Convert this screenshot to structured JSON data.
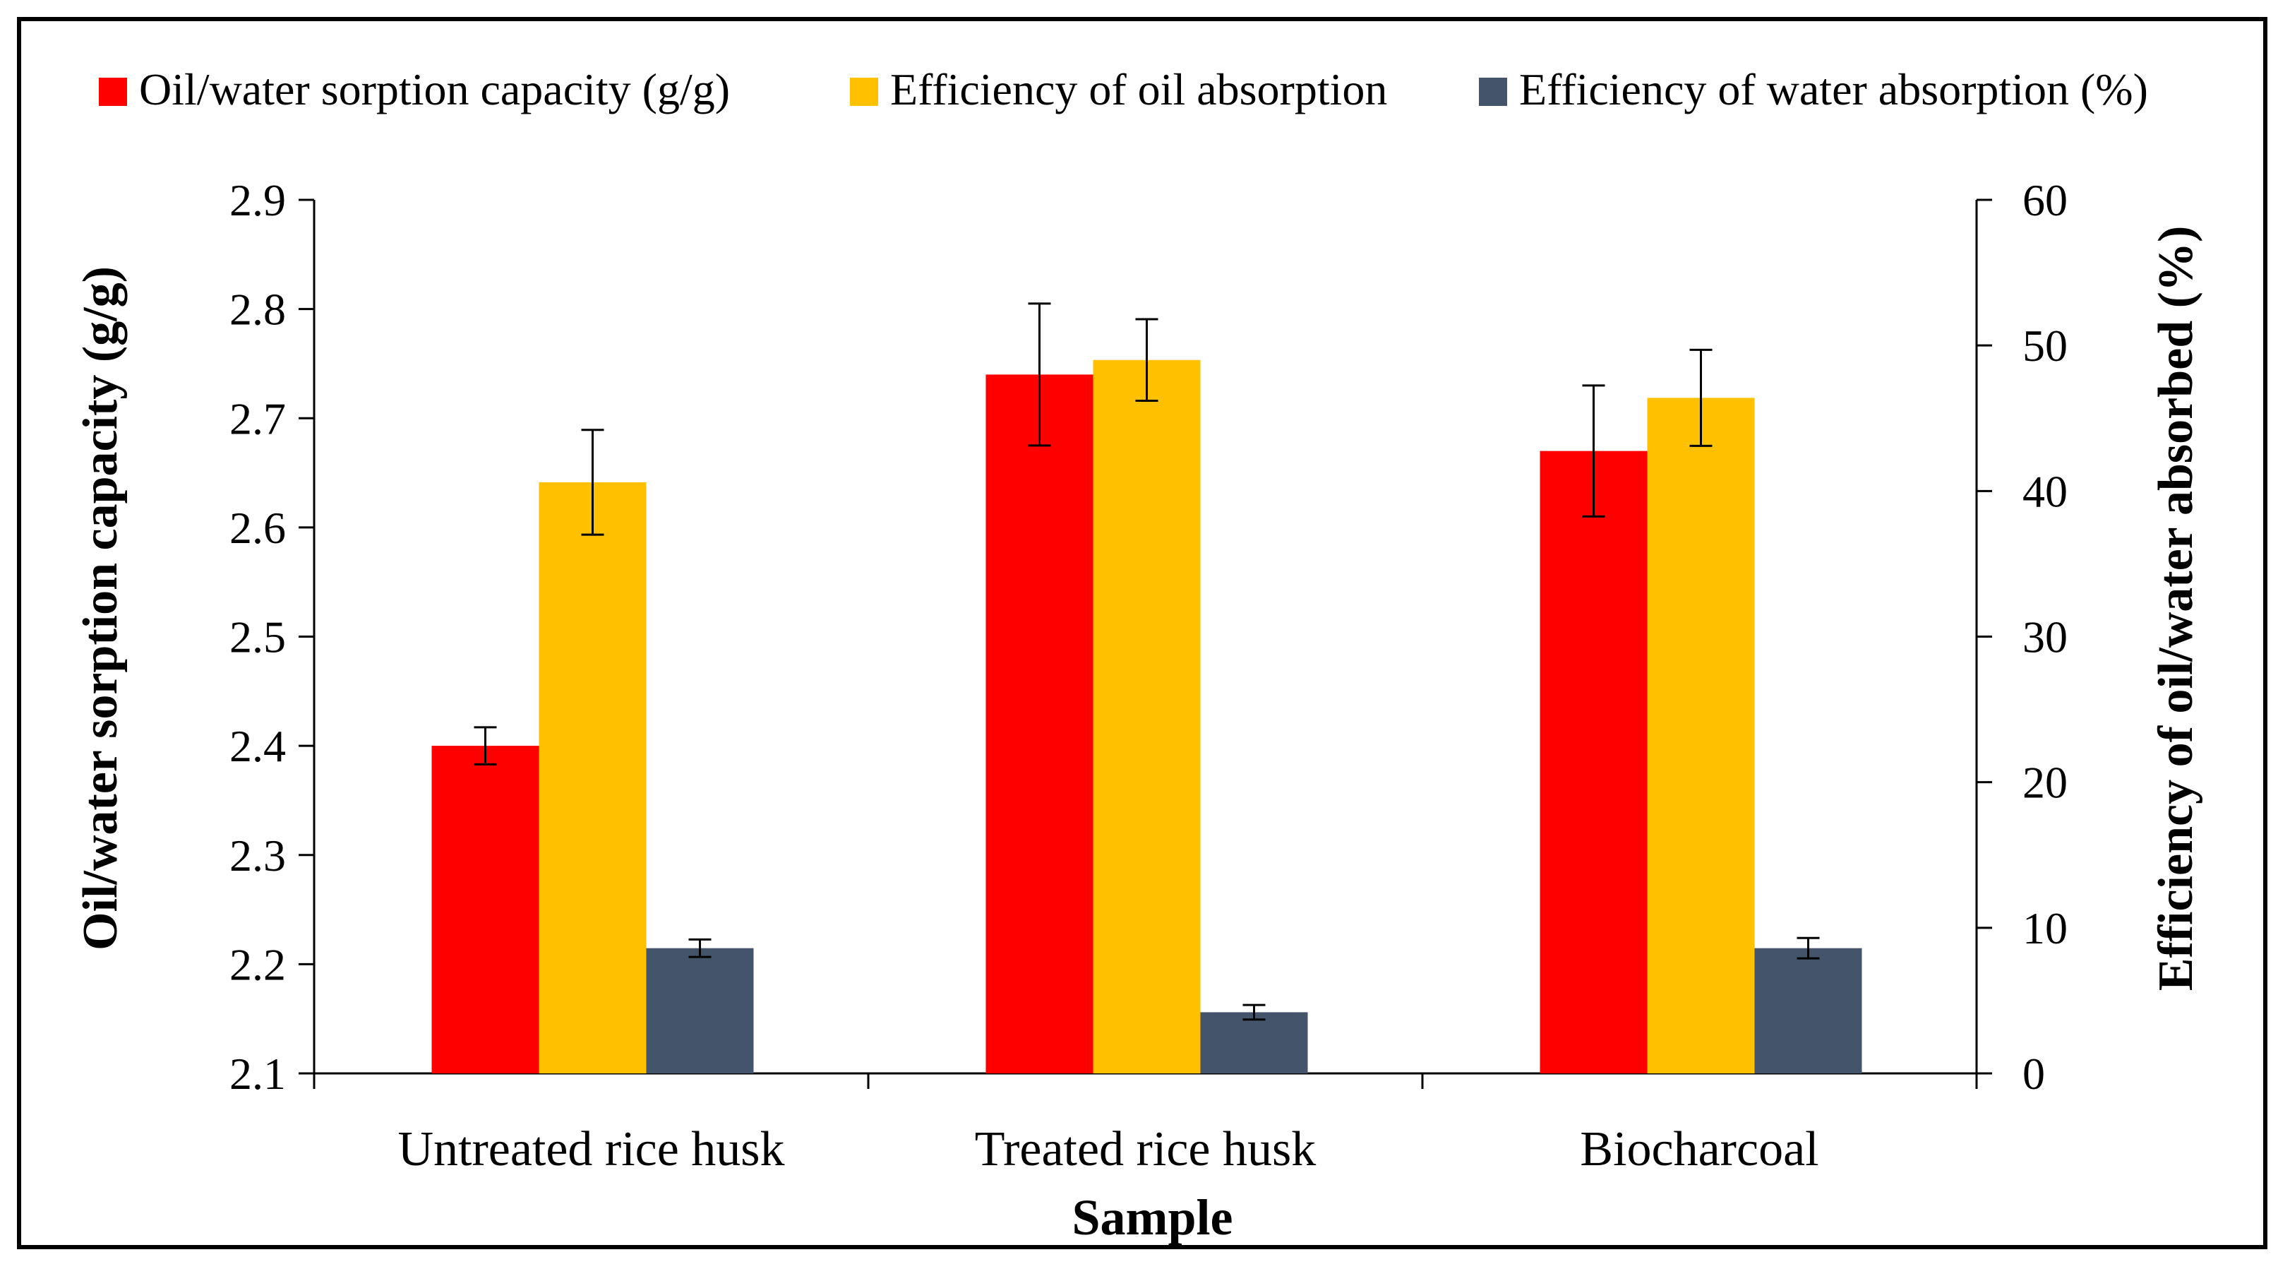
{
  "chart_data": {
    "type": "bar",
    "title": "",
    "xlabel": "Sample",
    "ylabel": "Oil/water sorption capacity (g/g)",
    "ylabel_right": "Efficiency of oil/water absorbed (%)",
    "categories": [
      "Untreated rice husk",
      "Treated rice husk",
      "Biocharcoal"
    ],
    "ylim": [
      2.1,
      2.9
    ],
    "ylim_right": [
      0,
      60
    ],
    "yticks": [
      "2.1",
      "2.2",
      "2.3",
      "2.4",
      "2.5",
      "2.6",
      "2.7",
      "2.8",
      "2.9"
    ],
    "yticks_right": [
      "0",
      "10",
      "20",
      "30",
      "40",
      "50",
      "60"
    ],
    "grid": false,
    "legend_position": "top",
    "series": [
      {
        "name": "Oil/water sorption capacity (g/g)",
        "axis": "left",
        "color": "#ff0000",
        "values": [
          2.4,
          2.74,
          2.67
        ],
        "errors": [
          0.017,
          0.065,
          0.06
        ]
      },
      {
        "name": "Efficiency of oil absorption",
        "axis": "right",
        "color": "#ffc000",
        "values": [
          40.6,
          49.0,
          46.4
        ],
        "errors": [
          3.6,
          2.8,
          3.3
        ]
      },
      {
        "name": "Efficiency of water absorption (%)",
        "axis": "right",
        "color": "#44546a",
        "values": [
          8.6,
          4.2,
          8.6
        ],
        "errors": [
          0.6,
          0.5,
          0.7
        ]
      }
    ]
  }
}
